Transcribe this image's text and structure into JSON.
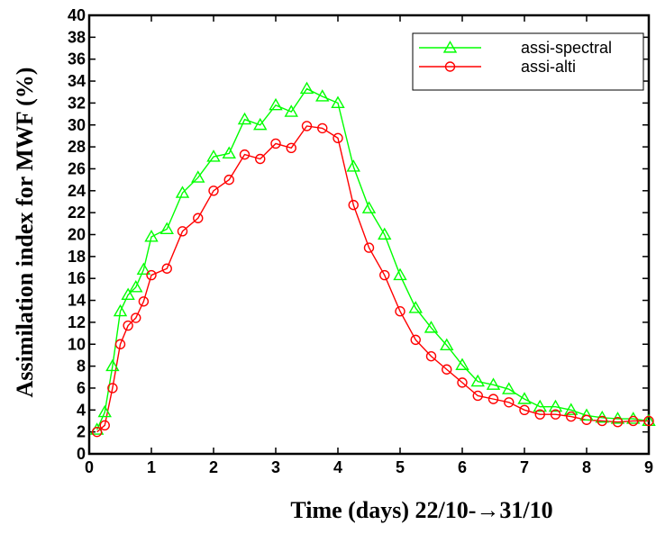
{
  "chart_data": {
    "type": "line",
    "xlabel": "Time (days) 22/10-→31/10",
    "ylabel": "Assimilation index for MWF (%)",
    "xlim": [
      0,
      9
    ],
    "ylim": [
      0,
      40
    ],
    "xticks": [
      "0",
      "1",
      "2",
      "3",
      "4",
      "5",
      "6",
      "7",
      "8",
      "9"
    ],
    "yticks": [
      "0",
      "2",
      "4",
      "6",
      "8",
      "10",
      "12",
      "14",
      "16",
      "18",
      "20",
      "22",
      "24",
      "26",
      "28",
      "30",
      "32",
      "34",
      "36",
      "38",
      "40"
    ],
    "grid": false,
    "legend_position": "top-right",
    "series": [
      {
        "name": "assi-spectral",
        "color": "#00ff00",
        "marker": "triangle",
        "x": [
          0.125,
          0.25,
          0.375,
          0.5,
          0.625,
          0.75,
          0.875,
          1.0,
          1.25,
          1.5,
          1.75,
          2.0,
          2.25,
          2.5,
          2.75,
          3.0,
          3.25,
          3.5,
          3.75,
          4.0,
          4.25,
          4.5,
          4.75,
          5.0,
          5.25,
          5.5,
          5.75,
          6.0,
          6.25,
          6.5,
          6.75,
          7.0,
          7.25,
          7.5,
          7.75,
          8.0,
          8.25,
          8.5,
          8.75,
          9.0
        ],
        "y": [
          2.2,
          3.8,
          8.0,
          13.0,
          14.5,
          15.2,
          16.8,
          19.8,
          20.5,
          23.8,
          25.2,
          27.1,
          27.4,
          30.5,
          30.0,
          31.8,
          31.2,
          33.3,
          32.6,
          32.0,
          26.2,
          22.4,
          20.0,
          16.3,
          13.3,
          11.5,
          9.9,
          8.1,
          6.6,
          6.3,
          5.9,
          5.0,
          4.3,
          4.3,
          4.0,
          3.5,
          3.3,
          3.2,
          3.2,
          3.0
        ]
      },
      {
        "name": "assi-alti",
        "color": "#ff0000",
        "marker": "circle",
        "x": [
          0.125,
          0.25,
          0.375,
          0.5,
          0.625,
          0.75,
          0.875,
          1.0,
          1.25,
          1.5,
          1.75,
          2.0,
          2.25,
          2.5,
          2.75,
          3.0,
          3.25,
          3.5,
          3.75,
          4.0,
          4.25,
          4.5,
          4.75,
          5.0,
          5.25,
          5.5,
          5.75,
          6.0,
          6.25,
          6.5,
          6.75,
          7.0,
          7.25,
          7.5,
          7.75,
          8.0,
          8.25,
          8.5,
          8.75,
          9.0
        ],
        "y": [
          2.0,
          2.6,
          6.0,
          10.0,
          11.7,
          12.4,
          13.9,
          16.3,
          16.9,
          20.3,
          21.5,
          24.0,
          25.0,
          27.3,
          26.9,
          28.3,
          27.9,
          29.9,
          29.7,
          28.8,
          22.7,
          18.8,
          16.3,
          13.0,
          10.4,
          8.9,
          7.7,
          6.5,
          5.3,
          5.0,
          4.7,
          4.0,
          3.6,
          3.6,
          3.4,
          3.1,
          3.0,
          2.9,
          3.0,
          3.0
        ]
      }
    ]
  }
}
